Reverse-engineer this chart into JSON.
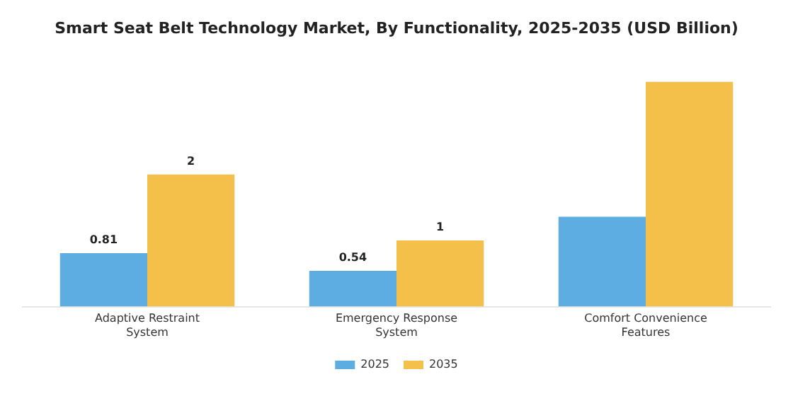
{
  "chart_data": {
    "type": "bar",
    "title": "Smart Seat Belt Technology Market, By Functionality, 2025-2035 (USD Billion)",
    "categories": [
      "Adaptive Restraint\nSystem",
      "Emergency Response\nSystem",
      "Comfort Convenience\nFeatures"
    ],
    "series": [
      {
        "name": "2025",
        "color": "#5dade2",
        "values": [
          0.81,
          0.54,
          1.36
        ],
        "value_labels": [
          "0.81",
          "0.54",
          null
        ]
      },
      {
        "name": "2035",
        "color": "#f5c04a",
        "values": [
          2,
          1,
          3.4
        ],
        "value_labels": [
          "2",
          "1",
          null
        ]
      }
    ],
    "legend": "bottom",
    "grid": false
  }
}
